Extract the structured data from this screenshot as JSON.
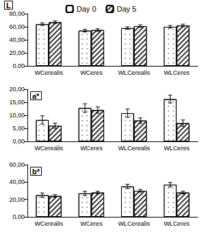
{
  "chart_data": [
    {
      "type": "bar",
      "title": "L",
      "categories": [
        "WCerealis",
        "WCeres",
        "WLCerealis",
        "WLCeres"
      ],
      "series": [
        {
          "name": "Day 0",
          "color": "#ffffff",
          "values": [
            64,
            54,
            58,
            60
          ],
          "errors": [
            2,
            2,
            2,
            2
          ]
        },
        {
          "name": "Day 5",
          "color": "#ffffff",
          "values": [
            67,
            55,
            61,
            62
          ],
          "errors": [
            2,
            2,
            2,
            2
          ]
        }
      ],
      "ylim": [
        0,
        80
      ],
      "yticks": [
        {
          "value": 0,
          "label": "0,00"
        },
        {
          "value": 20,
          "label": "20,00"
        },
        {
          "value": 40,
          "label": "40,00"
        },
        {
          "value": 60,
          "label": "60,00"
        },
        {
          "value": 80,
          "label": "80,00"
        }
      ],
      "grid": false,
      "legend": "top"
    },
    {
      "type": "bar",
      "title": "a*",
      "categories": [
        "WCerealis",
        "WCeres",
        "WLCerealis",
        "WLCeres"
      ],
      "series": [
        {
          "name": "Day 0",
          "color": "#ffffff",
          "values": [
            8.2,
            12.8,
            10.8,
            16.2
          ],
          "errors": [
            1.6,
            1.6,
            1.6,
            1.5
          ]
        },
        {
          "name": "Day 5",
          "color": "#ffffff",
          "values": [
            6.0,
            12.0,
            8.0,
            7.0
          ],
          "errors": [
            1.0,
            1.2,
            1.0,
            1.2
          ]
        }
      ],
      "ylim": [
        0,
        20
      ],
      "yticks": [
        {
          "value": 0,
          "label": "0,00"
        },
        {
          "value": 5,
          "label": "5,00"
        },
        {
          "value": 10,
          "label": "10,00"
        },
        {
          "value": 15,
          "label": "15,00"
        },
        {
          "value": 20,
          "label": "20,00"
        }
      ],
      "grid": false
    },
    {
      "type": "bar",
      "title": "b*",
      "categories": [
        "WCerealis",
        "WCeres",
        "WLCerealis",
        "WLCeres"
      ],
      "series": [
        {
          "name": "Day 0",
          "color": "#ffffff",
          "values": [
            25,
            27,
            35,
            37
          ],
          "errors": [
            2.5,
            2.5,
            2.5,
            2.5
          ]
        },
        {
          "name": "Day 5",
          "color": "#ffffff",
          "values": [
            24,
            28,
            30,
            28
          ],
          "errors": [
            1.5,
            1.5,
            1.5,
            1.5
          ]
        }
      ],
      "ylim": [
        0,
        60
      ],
      "yticks": [
        {
          "value": 0,
          "label": "0,00"
        },
        {
          "value": 20,
          "label": "20,00"
        },
        {
          "value": 40,
          "label": "40,00"
        },
        {
          "value": 60,
          "label": "60,00"
        }
      ],
      "grid": false
    }
  ]
}
